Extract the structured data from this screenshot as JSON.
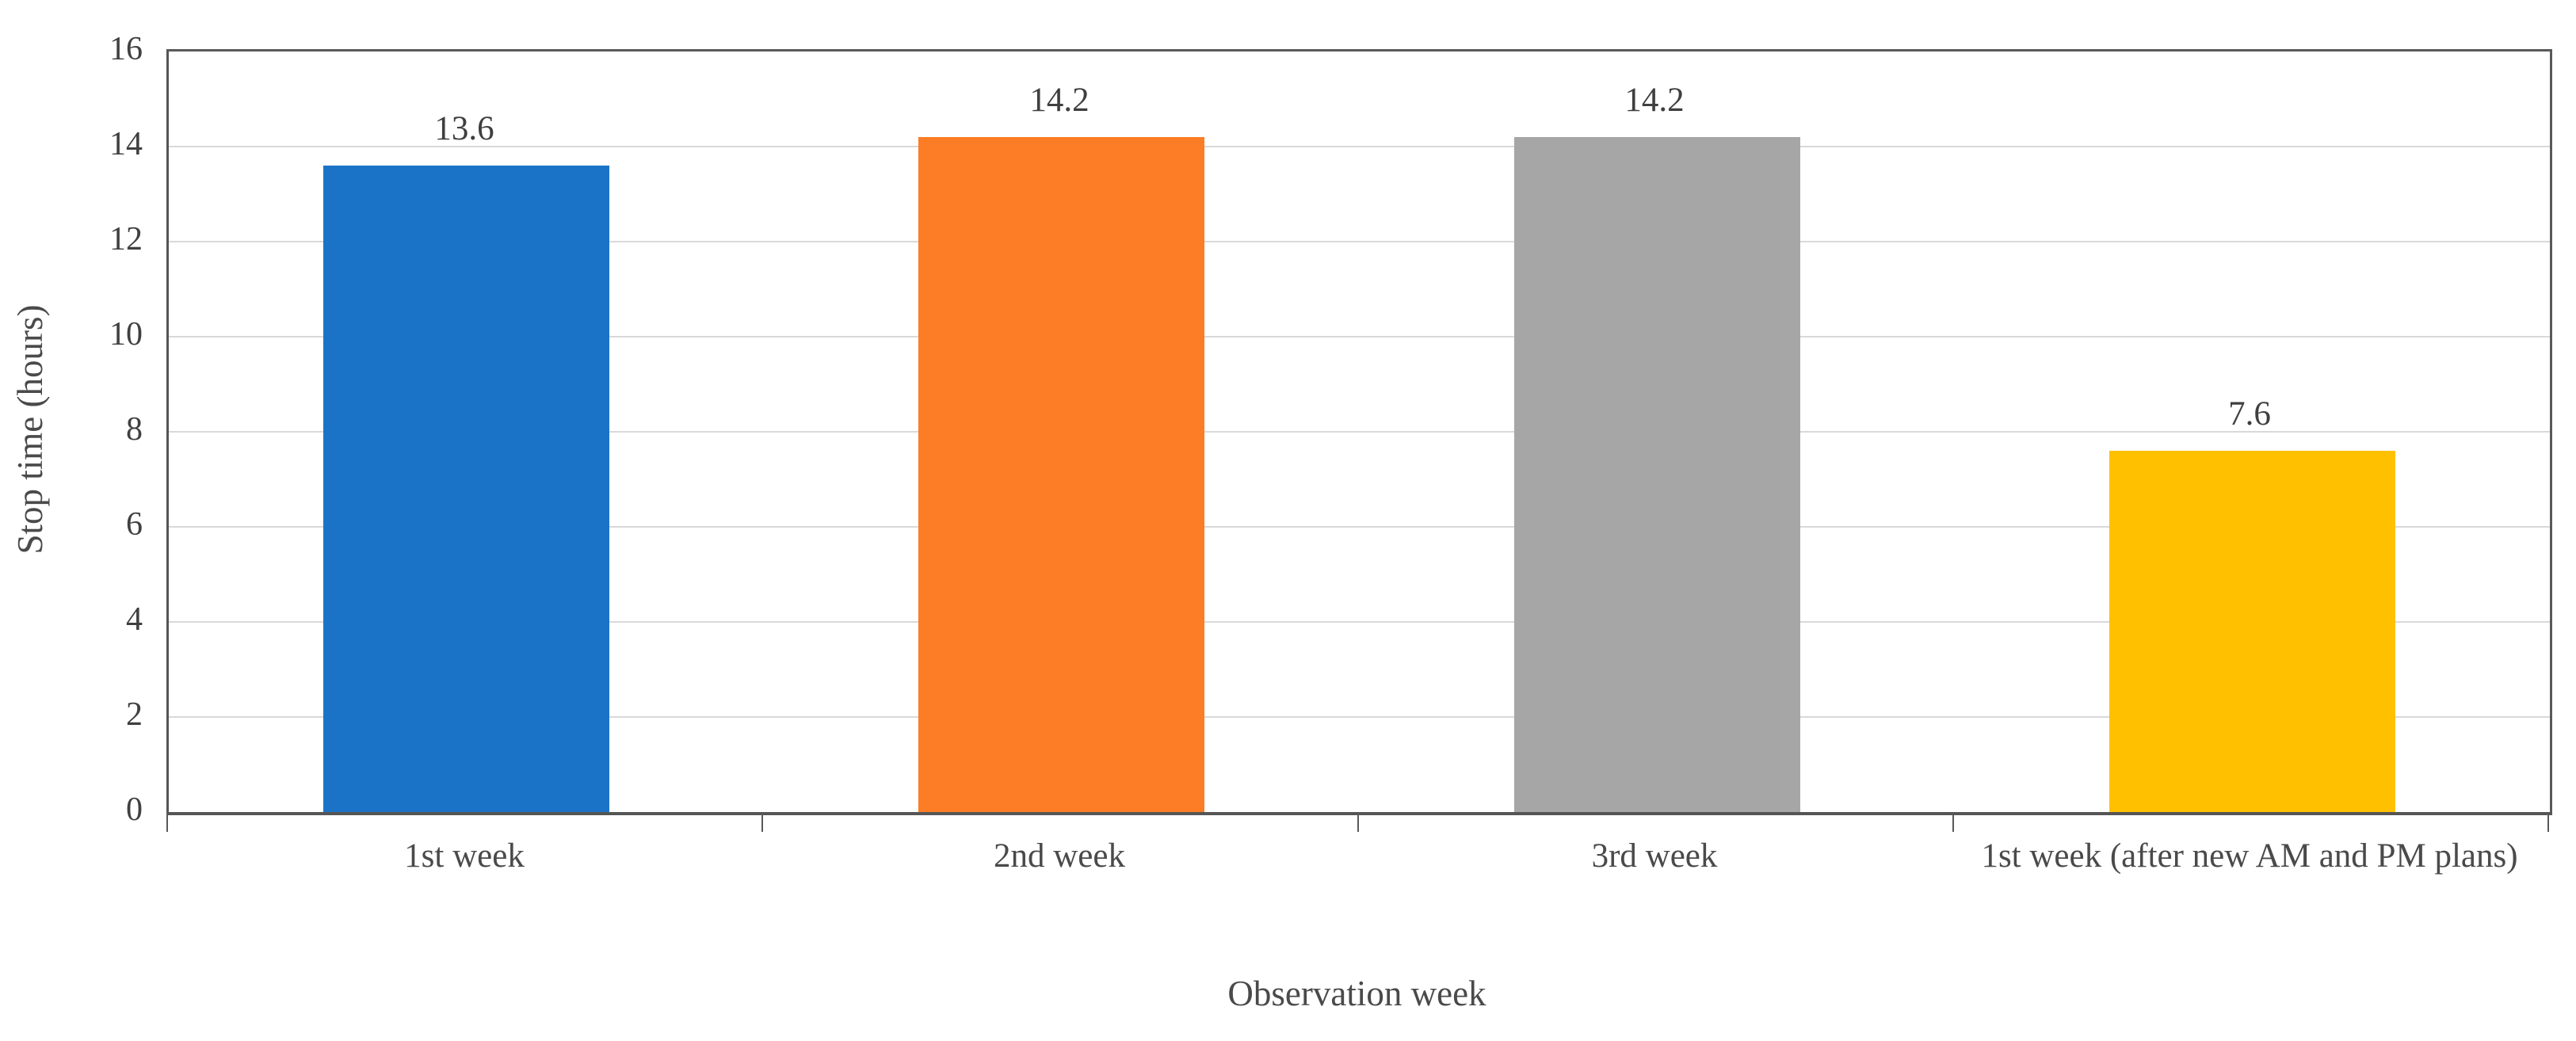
{
  "chart_data": {
    "type": "bar",
    "title": "",
    "categories": [
      "1st week",
      "2nd week",
      "3rd week",
      "1st week (after new AM and PM plans)"
    ],
    "values": [
      13.6,
      14.2,
      14.2,
      7.6
    ],
    "data_labels": [
      "13.6",
      "14.2",
      "14.2",
      "7.6"
    ],
    "bar_colors": [
      "#1b73c8",
      "#fc7d26",
      "#a6a6a6",
      "#ffc000"
    ],
    "xlabel": "Observation week",
    "ylabel": "Stop time (hours)",
    "ylim": [
      0,
      16
    ],
    "yticks": [
      0,
      2,
      4,
      6,
      8,
      10,
      12,
      14,
      16
    ],
    "grid": "horizontal",
    "legend_position": "none",
    "colors": {
      "gridline": "#d9d9d9",
      "axis_line": "#595959",
      "tick_label": "#404040",
      "data_label": "#3f3f3f",
      "axis_title": "#4a4a4a",
      "background": "#ffffff"
    }
  }
}
